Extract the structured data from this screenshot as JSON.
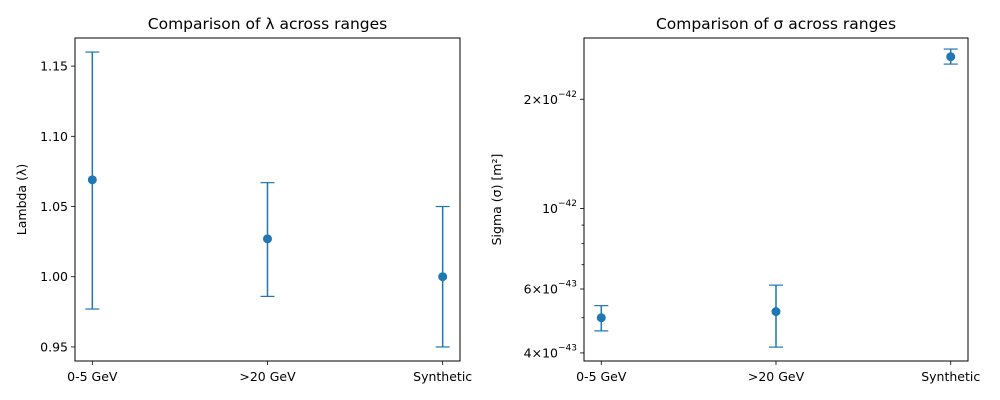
{
  "colors": {
    "series": "#1f77b4",
    "axes": "#000000",
    "background": "#ffffff"
  },
  "chart_data": [
    {
      "type": "errorbar",
      "title": "Comparison of λ across ranges",
      "xlabel": "",
      "ylabel": "Lambda (λ)",
      "categories": [
        "0-5 GeV",
        ">20 GeV",
        "Synthetic"
      ],
      "values": [
        1.069,
        1.027,
        1.0
      ],
      "error_low": [
        0.977,
        0.986,
        0.95
      ],
      "error_high": [
        1.16,
        1.067,
        1.05
      ],
      "ylim": [
        0.94,
        1.17
      ],
      "yscale": "linear",
      "yticks": [
        0.95,
        1.0,
        1.05,
        1.1,
        1.15
      ],
      "ytick_labels": [
        "0.95",
        "1.00",
        "1.05",
        "1.10",
        "1.15"
      ],
      "grid": false,
      "legend": "none"
    },
    {
      "type": "errorbar",
      "title": "Comparison of σ across ranges",
      "xlabel": "",
      "ylabel": "Sigma (σ) [m²]",
      "categories": [
        "0-5 GeV",
        ">20 GeV",
        "Synthetic"
      ],
      "values": [
        5e-43,
        5.2e-43,
        2.62e-42
      ],
      "error_low": [
        4.6e-43,
        4.15e-43,
        2.5e-42
      ],
      "error_high": [
        5.4e-43,
        6.15e-43,
        2.75e-42
      ],
      "ylim": [
        3.8e-43,
        2.95e-42
      ],
      "yscale": "log",
      "yticks": [
        4e-43,
        6e-43,
        1e-42,
        2e-42
      ],
      "ytick_labels": [
        {
          "base": "4",
          "exp": "−43"
        },
        {
          "base": "6",
          "exp": "−43"
        },
        {
          "base": "",
          "exp": "−42"
        },
        {
          "base": "2",
          "exp": "−42"
        }
      ],
      "minor_yticks": [
        5e-43,
        7e-43,
        8e-43,
        9e-43
      ],
      "grid": false,
      "legend": "none"
    }
  ]
}
